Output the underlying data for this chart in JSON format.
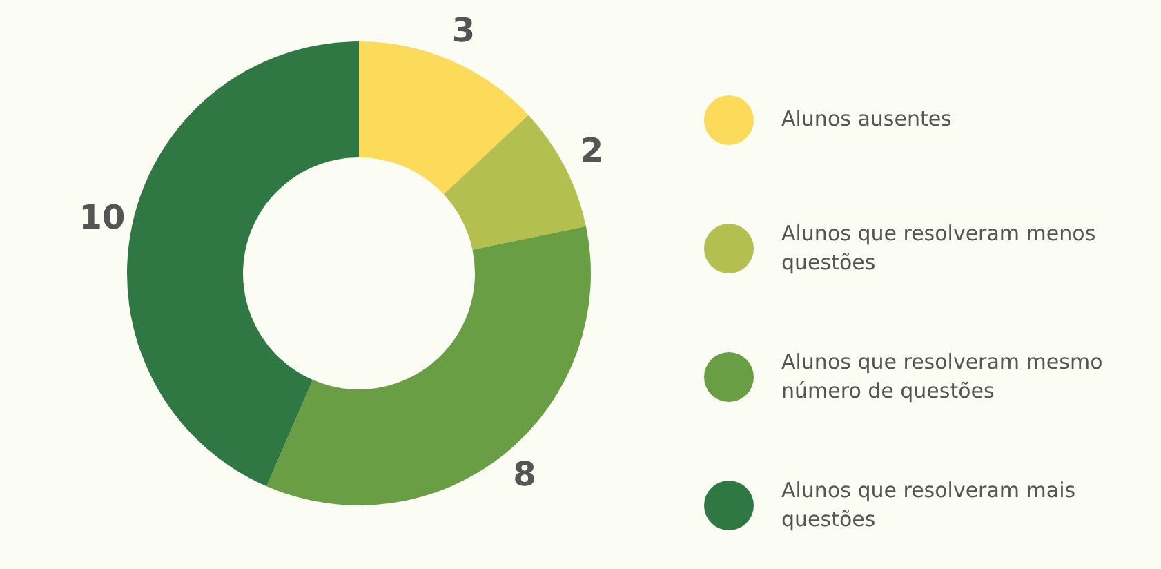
{
  "chart_data": {
    "type": "donut",
    "categories": [
      "Alunos ausentes",
      "Alunos que resolveram menos questões",
      "Alunos que resolveram mesmo número de questões",
      "Alunos que resolveram mais questões"
    ],
    "values": [
      3,
      2,
      8,
      10
    ],
    "colors": [
      "#fcdb5a",
      "#b3bf4e",
      "#6a9e45",
      "#2f7843"
    ],
    "data_labels": true,
    "legend": "right"
  }
}
